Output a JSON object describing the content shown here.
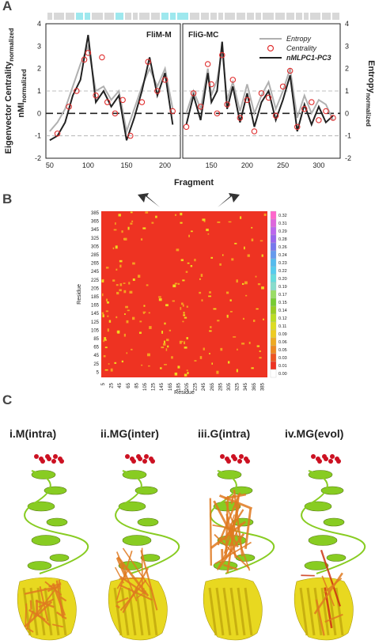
{
  "panels": {
    "a": "A",
    "b": "B",
    "c": "C"
  },
  "panel_a": {
    "segment_left_label": "FliM-M",
    "segment_right_label": "FliG-MC",
    "ylabel_left": "Eigenvector Centrality",
    "ylabel_left_sub": "normalized",
    "ylabel_left2": "nMI",
    "ylabel_left2_sub": "normalized",
    "ylabel_right": "Entropy",
    "ylabel_right_sub": "normalized",
    "xlabel": "Fragment",
    "legend": [
      {
        "name": "Entropy",
        "color": "#b0b0b0"
      },
      {
        "name": "Centrality",
        "color": "#e03030"
      },
      {
        "name": "nMLPC1-PC3",
        "color": "#222222"
      }
    ],
    "y_ticks": [
      "4",
      "3",
      "2",
      "1",
      "0",
      "-1",
      "-2"
    ],
    "x_ticks_left": [
      "50",
      "100",
      "150",
      "200"
    ],
    "x_ticks_right": [
      "150",
      "200",
      "250",
      "300"
    ],
    "ylim": [
      -2,
      4
    ],
    "xlim_left": [
      45,
      220
    ],
    "xlim_right": [
      110,
      330
    ]
  },
  "panel_b": {
    "ylabel": "Residue",
    "xlabel": "Residue",
    "y_ticks": [
      "385",
      "365",
      "345",
      "325",
      "305",
      "285",
      "265",
      "245",
      "225",
      "205",
      "185",
      "165",
      "145",
      "125",
      "105",
      "85",
      "65",
      "45",
      "25",
      "5"
    ],
    "x_ticks": [
      "5",
      "25",
      "45",
      "65",
      "85",
      "105",
      "125",
      "145",
      "165",
      "185",
      "205",
      "225",
      "245",
      "265",
      "285",
      "305",
      "325",
      "345",
      "365",
      "385"
    ],
    "colorbar_ticks": [
      "0.32",
      "0.31",
      "0.29",
      "0.28",
      "0.26",
      "0.24",
      "0.23",
      "0.22",
      "0.20",
      "0.19",
      "0.17",
      "0.15",
      "0.14",
      "0.12",
      "0.11",
      "0.09",
      "0.06",
      "0.05",
      "0.03",
      "0.01",
      "0.00"
    ]
  },
  "panel_c": {
    "titles": [
      "i.M(intra)",
      "ii.MG(inter)",
      "iii.G(intra)",
      "iv.MG(evol)"
    ]
  },
  "colors": {
    "heatmap_bg": "#ee3322",
    "protein_green": "#88cc22",
    "protein_yellow": "#e8d820",
    "network_orange": "#e07a20",
    "red_site": "#cc1122"
  },
  "chart_data": {
    "type": "line",
    "title": "",
    "xlabel": "Fragment",
    "ylabel": "Eigenvector Centrality normalized",
    "ylim": [
      -2,
      4
    ],
    "series": [
      {
        "name": "nMLPC1-PC3",
        "x": [
          50,
          60,
          70,
          80,
          90,
          100,
          105,
          110,
          120,
          130,
          140,
          150,
          160,
          170,
          180,
          190,
          200,
          210
        ],
        "values": [
          -1.2,
          -1.0,
          -0.4,
          0.8,
          1.5,
          3.5,
          2.0,
          0.5,
          1.0,
          0.3,
          0.8,
          -1.2,
          -0.2,
          1.0,
          2.5,
          0.8,
          1.8,
          -0.5
        ]
      },
      {
        "name": "Entropy",
        "x": [
          50,
          60,
          70,
          80,
          90,
          100,
          110,
          120,
          130,
          140,
          150,
          160,
          170,
          180,
          190,
          200,
          210
        ],
        "values": [
          -0.8,
          -0.4,
          0.2,
          1.2,
          2.2,
          3.0,
          1.0,
          1.2,
          0.6,
          1.0,
          -0.8,
          0.2,
          1.2,
          2.0,
          1.2,
          2.0,
          0.2
        ]
      },
      {
        "name": "Centrality",
        "x": [
          60,
          75,
          85,
          95,
          100,
          110,
          118,
          125,
          135,
          145,
          155,
          170,
          178,
          190,
          200,
          210
        ],
        "values": [
          -0.9,
          0.3,
          1.0,
          2.4,
          2.7,
          0.8,
          2.5,
          0.5,
          0.0,
          0.6,
          -1.0,
          0.5,
          2.3,
          1.0,
          1.5,
          0.1
        ]
      }
    ]
  }
}
